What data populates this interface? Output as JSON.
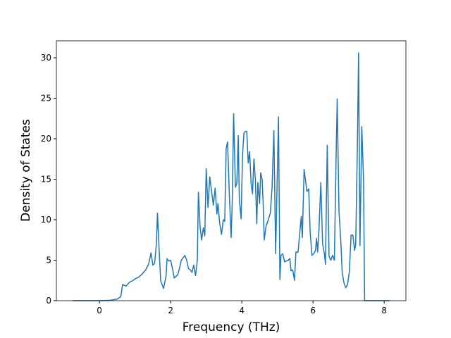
{
  "chart_data": {
    "type": "line",
    "xlabel": "Frequency (THz)",
    "ylabel": "Density of States",
    "xlim": [
      -1.21,
      8.61
    ],
    "ylim": [
      0,
      32.09
    ],
    "xticks": [
      0,
      2,
      4,
      6,
      8
    ],
    "yticks": [
      0,
      5,
      10,
      15,
      20,
      25,
      30
    ],
    "grid": false,
    "x": [
      -0.75,
      0.0,
      0.3,
      0.5,
      0.6,
      0.65,
      0.75,
      0.85,
      0.95,
      1.0,
      1.1,
      1.2,
      1.3,
      1.38,
      1.45,
      1.5,
      1.55,
      1.6,
      1.63,
      1.68,
      1.72,
      1.8,
      1.87,
      1.9,
      1.95,
      2.0,
      2.05,
      2.1,
      2.2,
      2.25,
      2.3,
      2.4,
      2.45,
      2.5,
      2.55,
      2.6,
      2.65,
      2.7,
      2.75,
      2.78,
      2.83,
      2.87,
      2.92,
      2.96,
      3.0,
      3.05,
      3.1,
      3.15,
      3.2,
      3.25,
      3.3,
      3.33,
      3.38,
      3.43,
      3.48,
      3.52,
      3.56,
      3.6,
      3.65,
      3.7,
      3.73,
      3.77,
      3.82,
      3.86,
      3.9,
      3.93,
      3.98,
      4.02,
      4.06,
      4.1,
      4.14,
      4.18,
      4.22,
      4.26,
      4.3,
      4.34,
      4.38,
      4.42,
      4.45,
      4.5,
      4.53,
      4.57,
      4.6,
      4.63,
      4.68,
      4.73,
      4.8,
      4.85,
      4.9,
      4.95,
      4.98,
      5.03,
      5.07,
      5.1,
      5.15,
      5.2,
      5.3,
      5.35,
      5.38,
      5.43,
      5.48,
      5.52,
      5.58,
      5.63,
      5.67,
      5.7,
      5.75,
      5.8,
      5.83,
      5.88,
      5.92,
      5.97,
      6.02,
      6.07,
      6.1,
      6.13,
      6.17,
      6.22,
      6.27,
      6.32,
      6.35,
      6.4,
      6.45,
      6.5,
      6.55,
      6.6,
      6.65,
      6.68,
      6.73,
      6.78,
      6.82,
      6.87,
      6.92,
      6.97,
      7.02,
      7.07,
      7.12,
      7.17,
      7.2,
      7.25,
      7.28,
      7.32,
      7.37,
      7.42,
      7.45,
      8.15
    ],
    "series": [
      {
        "color": "#1f77b4",
        "values": [
          0,
          0,
          0.05,
          0.2,
          0.5,
          2.0,
          1.8,
          2.3,
          2.5,
          2.7,
          2.9,
          3.3,
          3.8,
          4.5,
          5.9,
          4.4,
          4.6,
          7.0,
          10.8,
          6.0,
          2.5,
          1.5,
          3.0,
          5.2,
          4.9,
          5.0,
          4.0,
          2.8,
          3.2,
          4.0,
          5.0,
          5.6,
          5.0,
          4.0,
          3.8,
          3.5,
          4.4,
          3.1,
          5.0,
          13.4,
          9.0,
          7.5,
          9.0,
          8.0,
          16.3,
          11.5,
          15.3,
          13.5,
          11.8,
          13.9,
          10.7,
          12.0,
          9.5,
          8.2,
          10.0,
          9.8,
          18.8,
          19.6,
          13.0,
          7.8,
          12.0,
          23.1,
          14.0,
          14.5,
          20.4,
          12.5,
          10.1,
          18.0,
          20.7,
          20.9,
          20.9,
          17.0,
          18.4,
          14.5,
          13.2,
          17.5,
          15.0,
          9.5,
          14.6,
          12.0,
          15.8,
          15.0,
          12.0,
          7.5,
          9.2,
          9.8,
          10.8,
          14.0,
          21.0,
          5.8,
          12.0,
          22.7,
          2.6,
          5.6,
          5.8,
          4.8,
          5.0,
          5.2,
          3.7,
          3.8,
          2.5,
          6.0,
          6.0,
          8.5,
          10.4,
          7.8,
          16.2,
          14.5,
          13.5,
          13.8,
          8.5,
          5.6,
          5.8,
          6.2,
          7.7,
          6.0,
          9.0,
          14.6,
          7.0,
          5.8,
          4.5,
          19.2,
          5.5,
          5.0,
          5.6,
          5.0,
          18.0,
          24.9,
          11.0,
          7.5,
          3.5,
          2.2,
          1.6,
          2.0,
          3.5,
          8.1,
          8.1,
          6.2,
          7.0,
          20.0,
          30.6,
          6.8,
          21.5,
          15.0,
          0,
          0
        ]
      }
    ]
  }
}
